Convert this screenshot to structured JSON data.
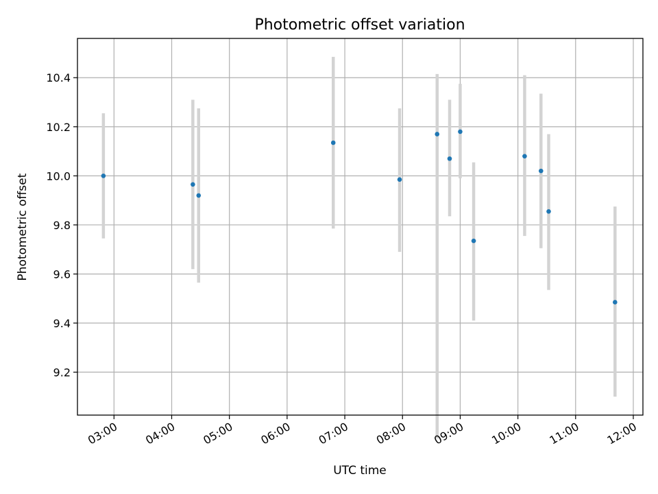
{
  "chart_data": {
    "type": "scatter",
    "title": "Photometric offset variation",
    "xlabel": "UTC time",
    "ylabel": "Photometric offset",
    "x_ticks": [
      "03:00",
      "04:00",
      "05:00",
      "06:00",
      "07:00",
      "08:00",
      "09:00",
      "10:00",
      "11:00",
      "12:00"
    ],
    "y_ticks": [
      "9.2",
      "9.4",
      "9.6",
      "9.8",
      "10.0",
      "10.2",
      "10.4"
    ],
    "xlim": [
      "02:22",
      "12:10"
    ],
    "ylim": [
      9.025,
      10.56
    ],
    "grid": true,
    "marker_color": "#1f77b4",
    "errorbar_color": "#d3d3d3",
    "points": [
      {
        "t": "02:49",
        "y": 10.0,
        "ylo": 9.745,
        "yhi": 10.255
      },
      {
        "t": "04:22",
        "y": 9.965,
        "ylo": 9.62,
        "yhi": 10.31
      },
      {
        "t": "04:28",
        "y": 9.92,
        "ylo": 9.565,
        "yhi": 10.275
      },
      {
        "t": "06:48",
        "y": 10.135,
        "ylo": 9.785,
        "yhi": 10.485
      },
      {
        "t": "07:57",
        "y": 9.985,
        "ylo": 9.69,
        "yhi": 10.275
      },
      {
        "t": "08:36",
        "y": 10.17,
        "ylo": 8.93,
        "yhi": 10.415
      },
      {
        "t": "08:49",
        "y": 10.07,
        "ylo": 9.835,
        "yhi": 10.31
      },
      {
        "t": "09:00",
        "y": 10.18,
        "ylo": 9.99,
        "yhi": 10.375
      },
      {
        "t": "09:14",
        "y": 9.735,
        "ylo": 9.41,
        "yhi": 10.055
      },
      {
        "t": "10:07",
        "y": 10.08,
        "ylo": 9.755,
        "yhi": 10.41
      },
      {
        "t": "10:24",
        "y": 10.02,
        "ylo": 9.705,
        "yhi": 10.335
      },
      {
        "t": "10:32",
        "y": 9.855,
        "ylo": 9.535,
        "yhi": 10.17
      },
      {
        "t": "11:41",
        "y": 9.485,
        "ylo": 9.1,
        "yhi": 9.875
      }
    ]
  }
}
